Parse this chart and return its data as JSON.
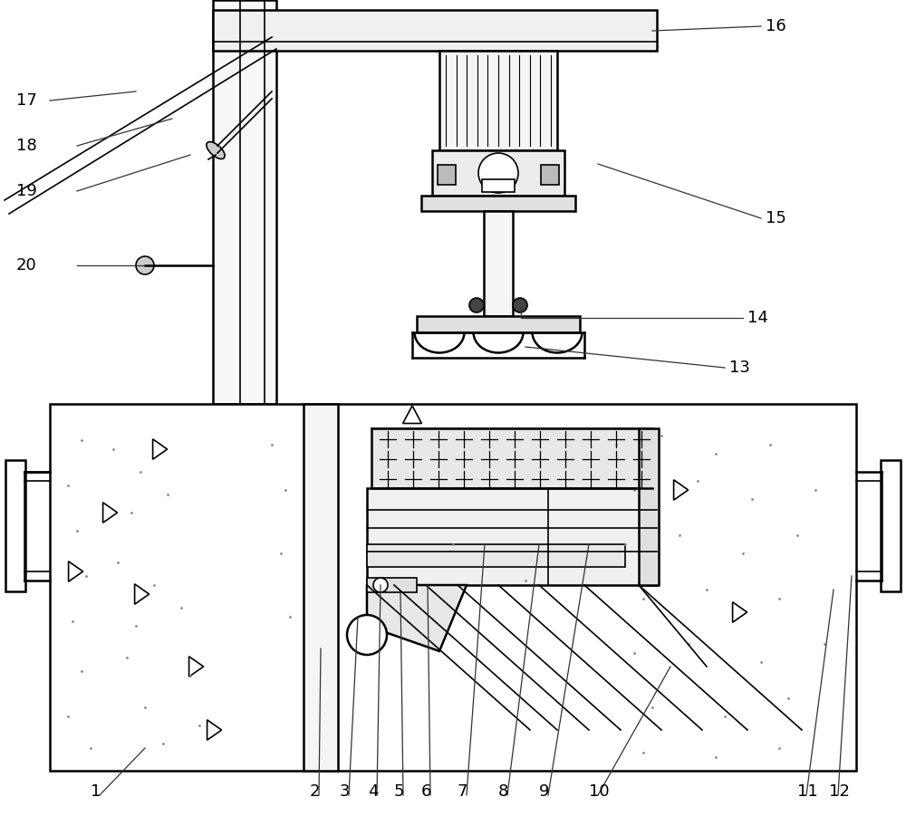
{
  "bg_color": "#ffffff",
  "lc": "#000000",
  "gray1": "#f0f0f0",
  "gray2": "#e0e0e0",
  "gray3": "#d0d0d0",
  "label_fs": 13,
  "lw": 1.2,
  "lw2": 1.8
}
